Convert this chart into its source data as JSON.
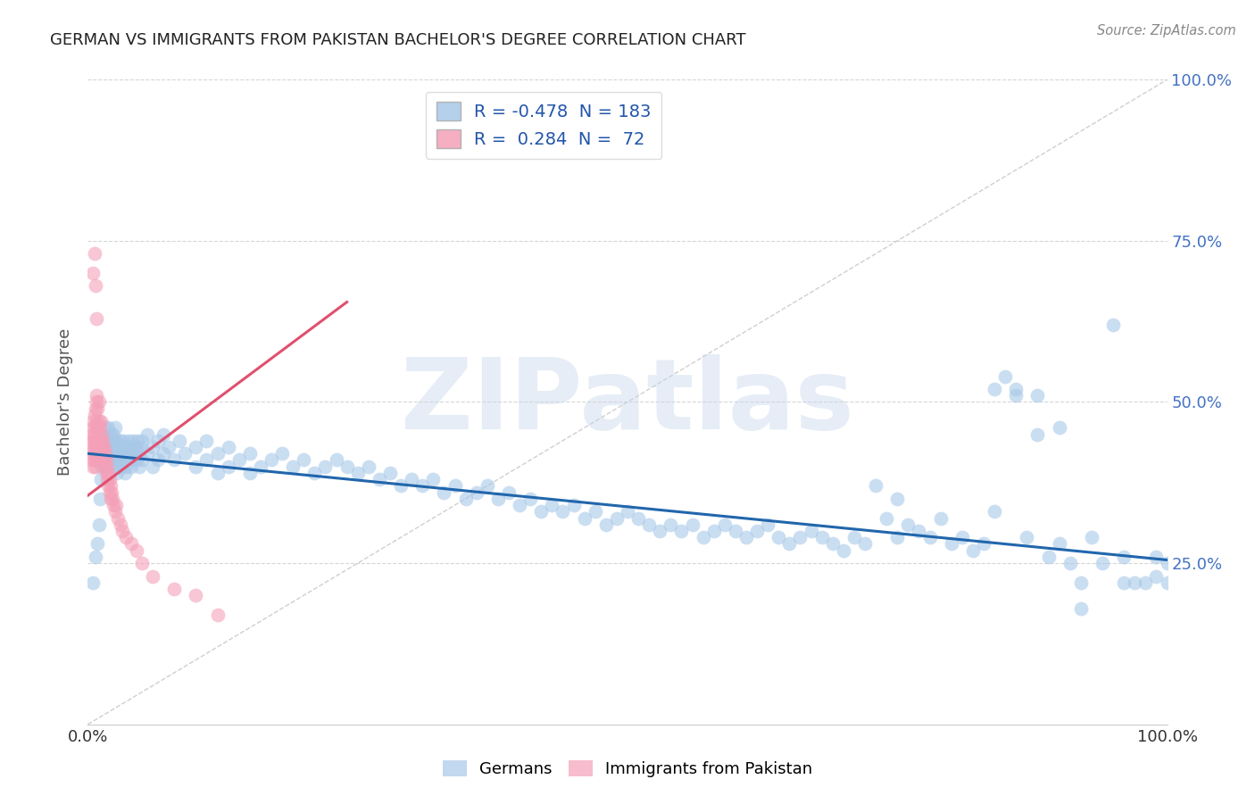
{
  "title": "GERMAN VS IMMIGRANTS FROM PAKISTAN BACHELOR'S DEGREE CORRELATION CHART",
  "source": "Source: ZipAtlas.com",
  "ylabel": "Bachelor's Degree",
  "watermark": "ZIPatlas",
  "xlim": [
    0.0,
    1.0
  ],
  "ylim": [
    0.0,
    1.0
  ],
  "yticks": [
    0.0,
    0.25,
    0.5,
    0.75,
    1.0
  ],
  "ytick_labels": [
    "",
    "25.0%",
    "50.0%",
    "75.0%",
    "100.0%"
  ],
  "xtick_left_label": "0.0%",
  "xtick_right_label": "100.0%",
  "blue_R": -0.478,
  "blue_N": 183,
  "pink_R": 0.284,
  "pink_N": 72,
  "blue_color": "#a8c8e8",
  "pink_color": "#f4a0b8",
  "blue_line_color": "#2166ac",
  "pink_line_color": "#e05070",
  "legend_label_blue": "Germans",
  "legend_label_pink": "Immigrants from Pakistan",
  "blue_line_x0": 0.0,
  "blue_line_y0": 0.42,
  "blue_line_x1": 1.0,
  "blue_line_y1": 0.255,
  "pink_line_x0": 0.0,
  "pink_line_y0": 0.355,
  "pink_line_x1": 0.24,
  "pink_line_y1": 0.655,
  "background_color": "#ffffff",
  "grid_color": "#cccccc",
  "title_color": "#222222",
  "axis_label_color": "#555555",
  "ytick_label_color": "#4472c4",
  "xtick_label_color": "#333333",
  "watermark_color": "#c8d8ec",
  "watermark_alpha": 0.45,
  "blue_points": [
    [
      0.005,
      0.22
    ],
    [
      0.007,
      0.26
    ],
    [
      0.009,
      0.28
    ],
    [
      0.01,
      0.31
    ],
    [
      0.011,
      0.35
    ],
    [
      0.012,
      0.38
    ],
    [
      0.013,
      0.4
    ],
    [
      0.014,
      0.42
    ],
    [
      0.015,
      0.44
    ],
    [
      0.015,
      0.4
    ],
    [
      0.016,
      0.43
    ],
    [
      0.016,
      0.46
    ],
    [
      0.017,
      0.41
    ],
    [
      0.017,
      0.44
    ],
    [
      0.018,
      0.42
    ],
    [
      0.018,
      0.45
    ],
    [
      0.019,
      0.43
    ],
    [
      0.019,
      0.46
    ],
    [
      0.02,
      0.41
    ],
    [
      0.02,
      0.44
    ],
    [
      0.021,
      0.42
    ],
    [
      0.021,
      0.45
    ],
    [
      0.022,
      0.43
    ],
    [
      0.022,
      0.4
    ],
    [
      0.023,
      0.44
    ],
    [
      0.023,
      0.41
    ],
    [
      0.024,
      0.42
    ],
    [
      0.024,
      0.45
    ],
    [
      0.025,
      0.43
    ],
    [
      0.025,
      0.46
    ],
    [
      0.026,
      0.41
    ],
    [
      0.026,
      0.44
    ],
    [
      0.027,
      0.42
    ],
    [
      0.027,
      0.39
    ],
    [
      0.028,
      0.43
    ],
    [
      0.028,
      0.4
    ],
    [
      0.029,
      0.41
    ],
    [
      0.03,
      0.44
    ],
    [
      0.03,
      0.42
    ],
    [
      0.031,
      0.43
    ],
    [
      0.032,
      0.4
    ],
    [
      0.032,
      0.43
    ],
    [
      0.033,
      0.41
    ],
    [
      0.033,
      0.44
    ],
    [
      0.034,
      0.42
    ],
    [
      0.034,
      0.39
    ],
    [
      0.035,
      0.4
    ],
    [
      0.036,
      0.43
    ],
    [
      0.037,
      0.41
    ],
    [
      0.038,
      0.44
    ],
    [
      0.039,
      0.42
    ],
    [
      0.04,
      0.43
    ],
    [
      0.04,
      0.4
    ],
    [
      0.041,
      0.41
    ],
    [
      0.042,
      0.44
    ],
    [
      0.043,
      0.42
    ],
    [
      0.044,
      0.43
    ],
    [
      0.045,
      0.41
    ],
    [
      0.046,
      0.44
    ],
    [
      0.047,
      0.42
    ],
    [
      0.048,
      0.4
    ],
    [
      0.049,
      0.43
    ],
    [
      0.05,
      0.44
    ],
    [
      0.05,
      0.41
    ],
    [
      0.055,
      0.42
    ],
    [
      0.055,
      0.45
    ],
    [
      0.06,
      0.43
    ],
    [
      0.06,
      0.4
    ],
    [
      0.065,
      0.41
    ],
    [
      0.065,
      0.44
    ],
    [
      0.07,
      0.42
    ],
    [
      0.07,
      0.45
    ],
    [
      0.075,
      0.43
    ],
    [
      0.08,
      0.41
    ],
    [
      0.085,
      0.44
    ],
    [
      0.09,
      0.42
    ],
    [
      0.1,
      0.43
    ],
    [
      0.1,
      0.4
    ],
    [
      0.11,
      0.41
    ],
    [
      0.11,
      0.44
    ],
    [
      0.12,
      0.42
    ],
    [
      0.12,
      0.39
    ],
    [
      0.13,
      0.4
    ],
    [
      0.13,
      0.43
    ],
    [
      0.14,
      0.41
    ],
    [
      0.15,
      0.42
    ],
    [
      0.15,
      0.39
    ],
    [
      0.16,
      0.4
    ],
    [
      0.17,
      0.41
    ],
    [
      0.18,
      0.42
    ],
    [
      0.19,
      0.4
    ],
    [
      0.2,
      0.41
    ],
    [
      0.21,
      0.39
    ],
    [
      0.22,
      0.4
    ],
    [
      0.23,
      0.41
    ],
    [
      0.24,
      0.4
    ],
    [
      0.25,
      0.39
    ],
    [
      0.26,
      0.4
    ],
    [
      0.27,
      0.38
    ],
    [
      0.28,
      0.39
    ],
    [
      0.29,
      0.37
    ],
    [
      0.3,
      0.38
    ],
    [
      0.31,
      0.37
    ],
    [
      0.32,
      0.38
    ],
    [
      0.33,
      0.36
    ],
    [
      0.34,
      0.37
    ],
    [
      0.35,
      0.35
    ],
    [
      0.36,
      0.36
    ],
    [
      0.37,
      0.37
    ],
    [
      0.38,
      0.35
    ],
    [
      0.39,
      0.36
    ],
    [
      0.4,
      0.34
    ],
    [
      0.41,
      0.35
    ],
    [
      0.42,
      0.33
    ],
    [
      0.43,
      0.34
    ],
    [
      0.44,
      0.33
    ],
    [
      0.45,
      0.34
    ],
    [
      0.46,
      0.32
    ],
    [
      0.47,
      0.33
    ],
    [
      0.48,
      0.31
    ],
    [
      0.49,
      0.32
    ],
    [
      0.5,
      0.33
    ],
    [
      0.51,
      0.32
    ],
    [
      0.52,
      0.31
    ],
    [
      0.53,
      0.3
    ],
    [
      0.54,
      0.31
    ],
    [
      0.55,
      0.3
    ],
    [
      0.56,
      0.31
    ],
    [
      0.57,
      0.29
    ],
    [
      0.58,
      0.3
    ],
    [
      0.59,
      0.31
    ],
    [
      0.6,
      0.3
    ],
    [
      0.61,
      0.29
    ],
    [
      0.62,
      0.3
    ],
    [
      0.63,
      0.31
    ],
    [
      0.64,
      0.29
    ],
    [
      0.65,
      0.28
    ],
    [
      0.66,
      0.29
    ],
    [
      0.67,
      0.3
    ],
    [
      0.68,
      0.29
    ],
    [
      0.69,
      0.28
    ],
    [
      0.7,
      0.27
    ],
    [
      0.71,
      0.29
    ],
    [
      0.72,
      0.28
    ],
    [
      0.73,
      0.37
    ],
    [
      0.74,
      0.32
    ],
    [
      0.75,
      0.35
    ],
    [
      0.75,
      0.29
    ],
    [
      0.76,
      0.31
    ],
    [
      0.77,
      0.3
    ],
    [
      0.78,
      0.29
    ],
    [
      0.79,
      0.32
    ],
    [
      0.8,
      0.28
    ],
    [
      0.81,
      0.29
    ],
    [
      0.82,
      0.27
    ],
    [
      0.83,
      0.28
    ],
    [
      0.84,
      0.33
    ],
    [
      0.84,
      0.52
    ],
    [
      0.85,
      0.54
    ],
    [
      0.86,
      0.51
    ],
    [
      0.86,
      0.52
    ],
    [
      0.87,
      0.29
    ],
    [
      0.88,
      0.51
    ],
    [
      0.88,
      0.45
    ],
    [
      0.89,
      0.26
    ],
    [
      0.9,
      0.28
    ],
    [
      0.9,
      0.46
    ],
    [
      0.91,
      0.25
    ],
    [
      0.92,
      0.18
    ],
    [
      0.92,
      0.22
    ],
    [
      0.93,
      0.29
    ],
    [
      0.94,
      0.25
    ],
    [
      0.95,
      0.62
    ],
    [
      0.96,
      0.22
    ],
    [
      0.96,
      0.26
    ],
    [
      0.97,
      0.22
    ],
    [
      0.98,
      0.22
    ],
    [
      0.99,
      0.23
    ],
    [
      0.99,
      0.26
    ],
    [
      1.0,
      0.25
    ],
    [
      1.0,
      0.22
    ]
  ],
  "pink_points": [
    [
      0.003,
      0.42
    ],
    [
      0.003,
      0.44
    ],
    [
      0.004,
      0.41
    ],
    [
      0.004,
      0.45
    ],
    [
      0.005,
      0.43
    ],
    [
      0.005,
      0.46
    ],
    [
      0.005,
      0.4
    ],
    [
      0.005,
      0.47
    ],
    [
      0.006,
      0.44
    ],
    [
      0.006,
      0.41
    ],
    [
      0.006,
      0.48
    ],
    [
      0.006,
      0.45
    ],
    [
      0.007,
      0.42
    ],
    [
      0.007,
      0.46
    ],
    [
      0.007,
      0.43
    ],
    [
      0.007,
      0.49
    ],
    [
      0.007,
      0.4
    ],
    [
      0.008,
      0.44
    ],
    [
      0.008,
      0.47
    ],
    [
      0.008,
      0.41
    ],
    [
      0.008,
      0.5
    ],
    [
      0.008,
      0.51
    ],
    [
      0.009,
      0.43
    ],
    [
      0.009,
      0.46
    ],
    [
      0.009,
      0.42
    ],
    [
      0.009,
      0.49
    ],
    [
      0.01,
      0.44
    ],
    [
      0.01,
      0.47
    ],
    [
      0.01,
      0.41
    ],
    [
      0.01,
      0.5
    ],
    [
      0.011,
      0.43
    ],
    [
      0.011,
      0.46
    ],
    [
      0.011,
      0.42
    ],
    [
      0.012,
      0.44
    ],
    [
      0.012,
      0.47
    ],
    [
      0.012,
      0.41
    ],
    [
      0.013,
      0.43
    ],
    [
      0.013,
      0.45
    ],
    [
      0.014,
      0.42
    ],
    [
      0.014,
      0.44
    ],
    [
      0.015,
      0.41
    ],
    [
      0.015,
      0.43
    ],
    [
      0.016,
      0.4
    ],
    [
      0.016,
      0.42
    ],
    [
      0.017,
      0.39
    ],
    [
      0.017,
      0.41
    ],
    [
      0.018,
      0.38
    ],
    [
      0.018,
      0.4
    ],
    [
      0.019,
      0.37
    ],
    [
      0.019,
      0.39
    ],
    [
      0.02,
      0.36
    ],
    [
      0.02,
      0.38
    ],
    [
      0.021,
      0.35
    ],
    [
      0.021,
      0.37
    ],
    [
      0.022,
      0.36
    ],
    [
      0.023,
      0.35
    ],
    [
      0.024,
      0.34
    ],
    [
      0.025,
      0.33
    ],
    [
      0.026,
      0.34
    ],
    [
      0.028,
      0.32
    ],
    [
      0.03,
      0.31
    ],
    [
      0.032,
      0.3
    ],
    [
      0.035,
      0.29
    ],
    [
      0.04,
      0.28
    ],
    [
      0.045,
      0.27
    ],
    [
      0.05,
      0.25
    ],
    [
      0.06,
      0.23
    ],
    [
      0.08,
      0.21
    ],
    [
      0.1,
      0.2
    ],
    [
      0.12,
      0.17
    ],
    [
      0.005,
      0.7
    ],
    [
      0.006,
      0.73
    ],
    [
      0.007,
      0.68
    ],
    [
      0.008,
      0.63
    ]
  ]
}
